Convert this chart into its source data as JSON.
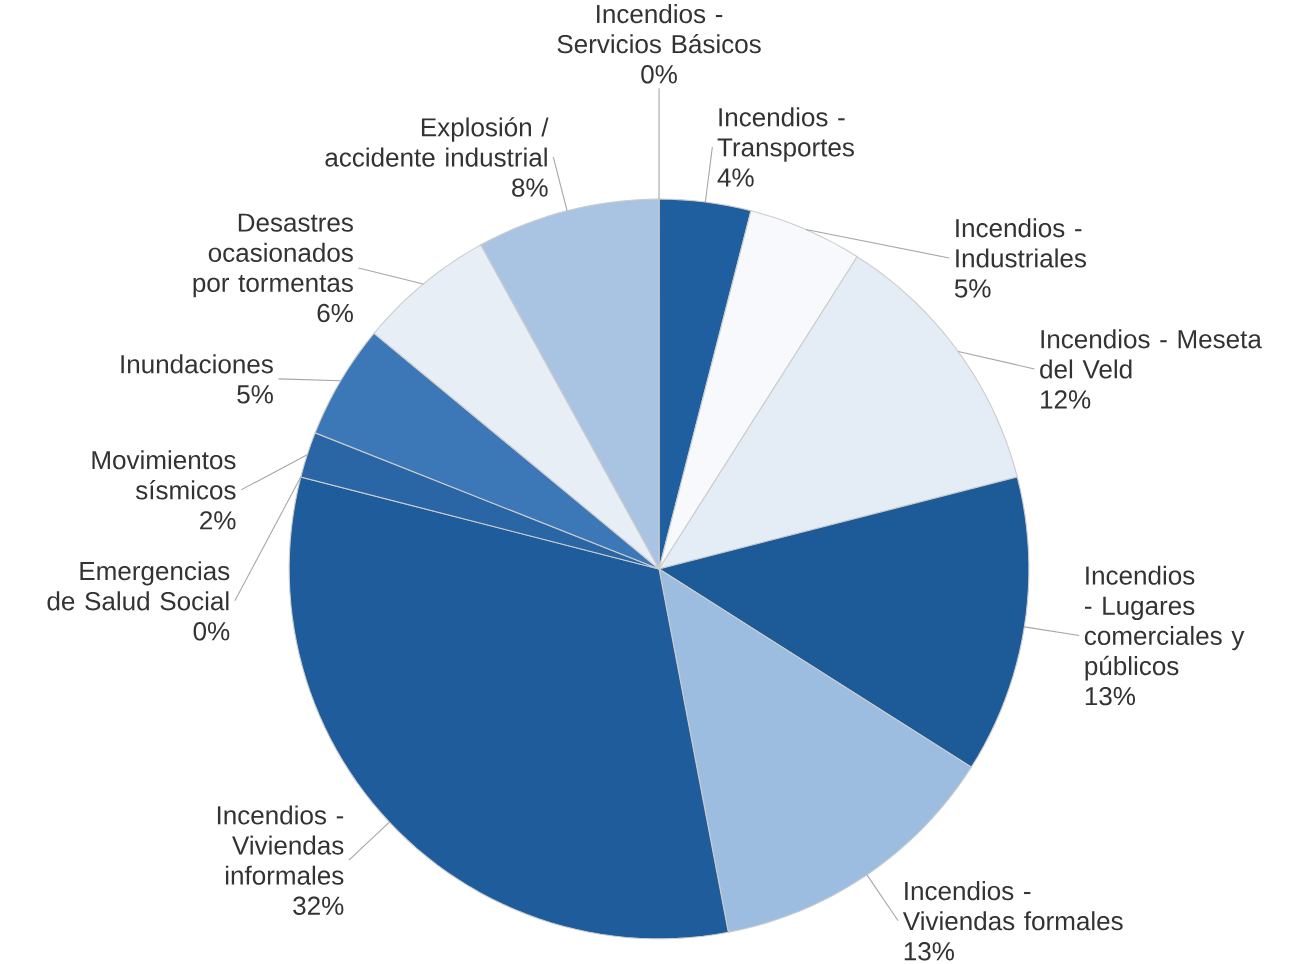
{
  "chart_data": {
    "type": "pie",
    "categories": [
      "Incendios - Servicios Básicos",
      "Incendios - Transportes",
      "Incendios - Industriales",
      "Incendios - Meseta del Veld",
      "Incendios - Lugares comerciales y públicos",
      "Incendios - Viviendas formales",
      "Incendios - Viviendas informales",
      "Emergencias de Salud Social",
      "Movimientos sísmicos",
      "Inundaciones",
      "Desastres ocasionados por tormentas",
      "Explosión / accidente industrial"
    ],
    "values": [
      0,
      4,
      5,
      12,
      13,
      13,
      32,
      0,
      2,
      5,
      6,
      8
    ],
    "value_labels": [
      "0%",
      "4%",
      "5%",
      "12%",
      "13%",
      "13%",
      "32%",
      "0%",
      "2%",
      "5%",
      "6%",
      "8%"
    ],
    "colors": [
      "#1c5a98",
      "#1f5fa0",
      "#f7f9fc",
      "#e4ecf5",
      "#1c5a98",
      "#9dbde0",
      "#1f5c9c",
      "#1c5a98",
      "#2a65a6",
      "#3c78b8",
      "#e8eef6",
      "#a9c4e2"
    ]
  }
}
